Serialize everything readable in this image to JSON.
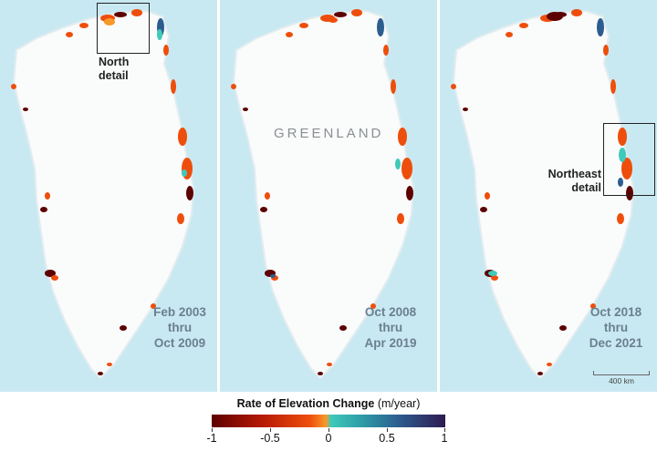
{
  "country_label": "GREENLAND",
  "panels": [
    {
      "period_line1": "Feb 2003",
      "period_line2": "thru",
      "period_line3": "Oct 2009"
    },
    {
      "period_line1": "Oct 2008",
      "period_line2": "thru",
      "period_line3": "Apr 2019"
    },
    {
      "period_line1": "Oct 2018",
      "period_line2": "thru",
      "period_line3": "Dec 2021"
    }
  ],
  "detail_labels": {
    "north_line1": "North",
    "north_line2": "detail",
    "northeast_line1": "Northeast",
    "northeast_line2": "detail"
  },
  "scale_bar": {
    "label": "400 km"
  },
  "legend": {
    "title": "Rate of Elevation Change",
    "unit": "(m/year)",
    "ticks": [
      "-1",
      "-0.5",
      "0",
      "0.5",
      "1"
    ],
    "colors": {
      "strong_loss": "#5d0000",
      "loss": "#ee4e0c",
      "slight_loss": "#f79a2a",
      "slight_gain": "#3fcaba",
      "gain": "#2c5d8f",
      "strong_gain": "#2e1a50"
    }
  },
  "colors": {
    "ocean": "#c9e9f2",
    "ice": "#fafbfb"
  }
}
